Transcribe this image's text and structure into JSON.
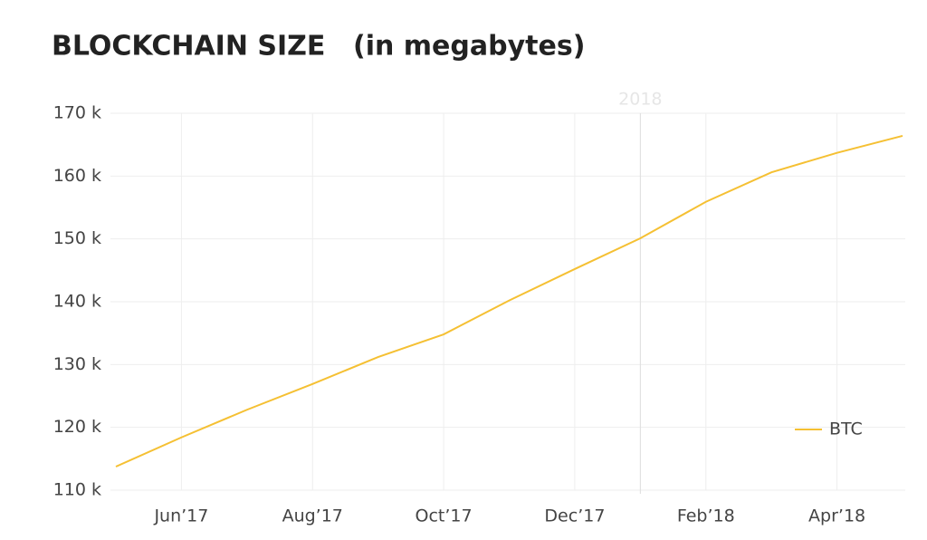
{
  "chart_data": {
    "type": "line",
    "title": "BLOCKCHAIN SIZE",
    "subtitle": "(in megabytes)",
    "x": [
      "2017-05",
      "2017-06",
      "2017-07",
      "2017-08",
      "2017-09",
      "2017-10",
      "2017-11",
      "2017-12",
      "2018-01",
      "2018-02",
      "2018-03",
      "2018-04",
      "2018-05"
    ],
    "series": [
      {
        "name": "BTC",
        "color": "#f5c033",
        "values": [
          113750,
          118400,
          122800,
          126900,
          131200,
          134800,
          140200,
          145200,
          150100,
          155900,
          160600,
          163700,
          166400
        ]
      }
    ],
    "xlim": [
      "2017-05",
      "2018-05"
    ],
    "xticks": [
      {
        "value": "2017-06",
        "label": "Jun’17"
      },
      {
        "value": "2017-08",
        "label": "Aug’17"
      },
      {
        "value": "2017-10",
        "label": "Oct’17"
      },
      {
        "value": "2017-12",
        "label": "Dec’17"
      },
      {
        "value": "2018-02",
        "label": "Feb’18"
      },
      {
        "value": "2018-04",
        "label": "Apr’18"
      }
    ],
    "ylim": [
      110000,
      170000
    ],
    "yticks": [
      {
        "value": 110000,
        "label": "110 k"
      },
      {
        "value": 120000,
        "label": "120 k"
      },
      {
        "value": 130000,
        "label": "130 k"
      },
      {
        "value": 140000,
        "label": "140 k"
      },
      {
        "value": 150000,
        "label": "150 k"
      },
      {
        "value": 160000,
        "label": "160 k"
      },
      {
        "value": 170000,
        "label": "170 k"
      }
    ],
    "annotations": [
      {
        "x": "2018-01",
        "text": "2018"
      }
    ],
    "grid": true,
    "legend": "bottom-right"
  }
}
